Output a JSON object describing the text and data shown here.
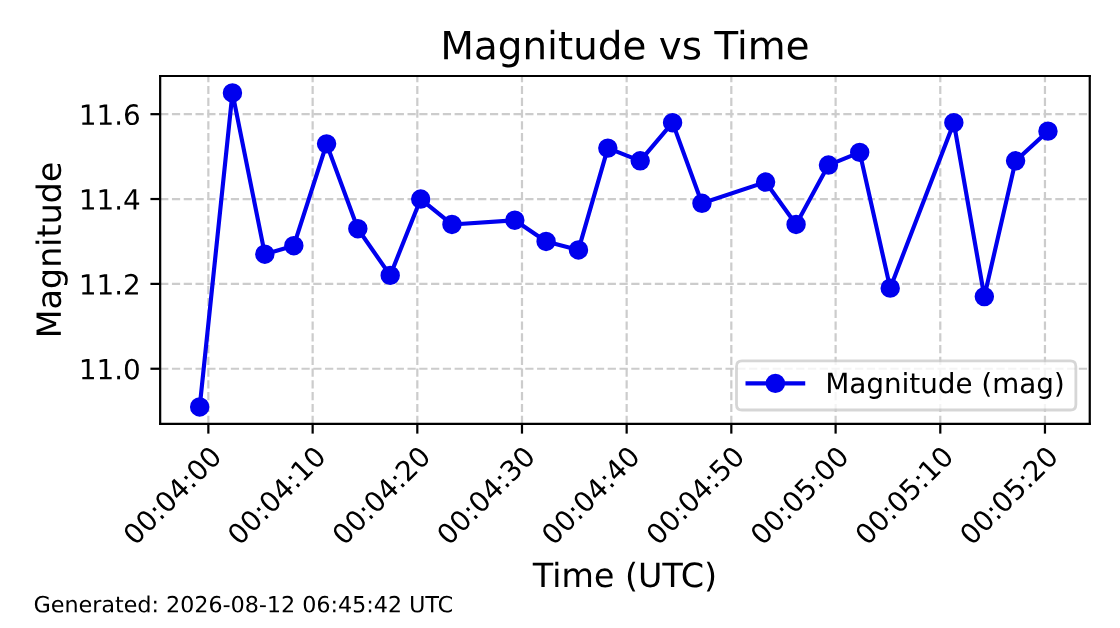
{
  "chart_data": {
    "type": "line",
    "title": "Magnitude vs Time",
    "xlabel": "Time (UTC)",
    "ylabel": "Magnitude",
    "x": [
      0.06644,
      0.06731,
      0.06817,
      0.06894,
      0.06981,
      0.07064,
      0.0715,
      0.07231,
      0.07314,
      0.07481,
      0.07564,
      0.0765,
      0.07728,
      0.07814,
      0.079,
      0.07978,
      0.08147,
      0.08228,
      0.08314,
      0.08397,
      0.08478,
      0.08647,
      0.08728,
      0.08811,
      0.08897
    ],
    "series": [
      {
        "name": "Magnitude (mag)",
        "color": "#0000ee",
        "values": [
          10.91,
          11.65,
          11.27,
          11.29,
          11.53,
          11.33,
          11.22,
          11.4,
          11.34,
          11.35,
          11.3,
          11.28,
          11.52,
          11.49,
          11.58,
          11.39,
          11.44,
          11.34,
          11.48,
          11.51,
          11.19,
          11.58,
          11.17,
          11.49,
          11.56
        ]
      }
    ],
    "xlim": [
      0.06539,
      0.09008
    ],
    "xticks": [
      {
        "value": 0.06667,
        "label": "00:04:00"
      },
      {
        "value": 0.06944,
        "label": "00:04:10"
      },
      {
        "value": 0.07222,
        "label": "00:04:20"
      },
      {
        "value": 0.075,
        "label": "00:04:30"
      },
      {
        "value": 0.07778,
        "label": "00:04:40"
      },
      {
        "value": 0.08056,
        "label": "00:04:50"
      },
      {
        "value": 0.08333,
        "label": "00:05:00"
      },
      {
        "value": 0.08611,
        "label": "00:05:10"
      },
      {
        "value": 0.08889,
        "label": "00:05:20"
      }
    ],
    "ylim": [
      10.87,
      11.69
    ],
    "yticks": [
      {
        "value": 11.0,
        "label": "11.0"
      },
      {
        "value": 11.2,
        "label": "11.2"
      },
      {
        "value": 11.4,
        "label": "11.4"
      },
      {
        "value": 11.6,
        "label": "11.6"
      }
    ],
    "grid": true,
    "legend": "bottom right",
    "marker": "circle",
    "line_style": "solid",
    "annotations": [
      "Generated: 2026-08-12 06:45:42 UTC"
    ]
  }
}
